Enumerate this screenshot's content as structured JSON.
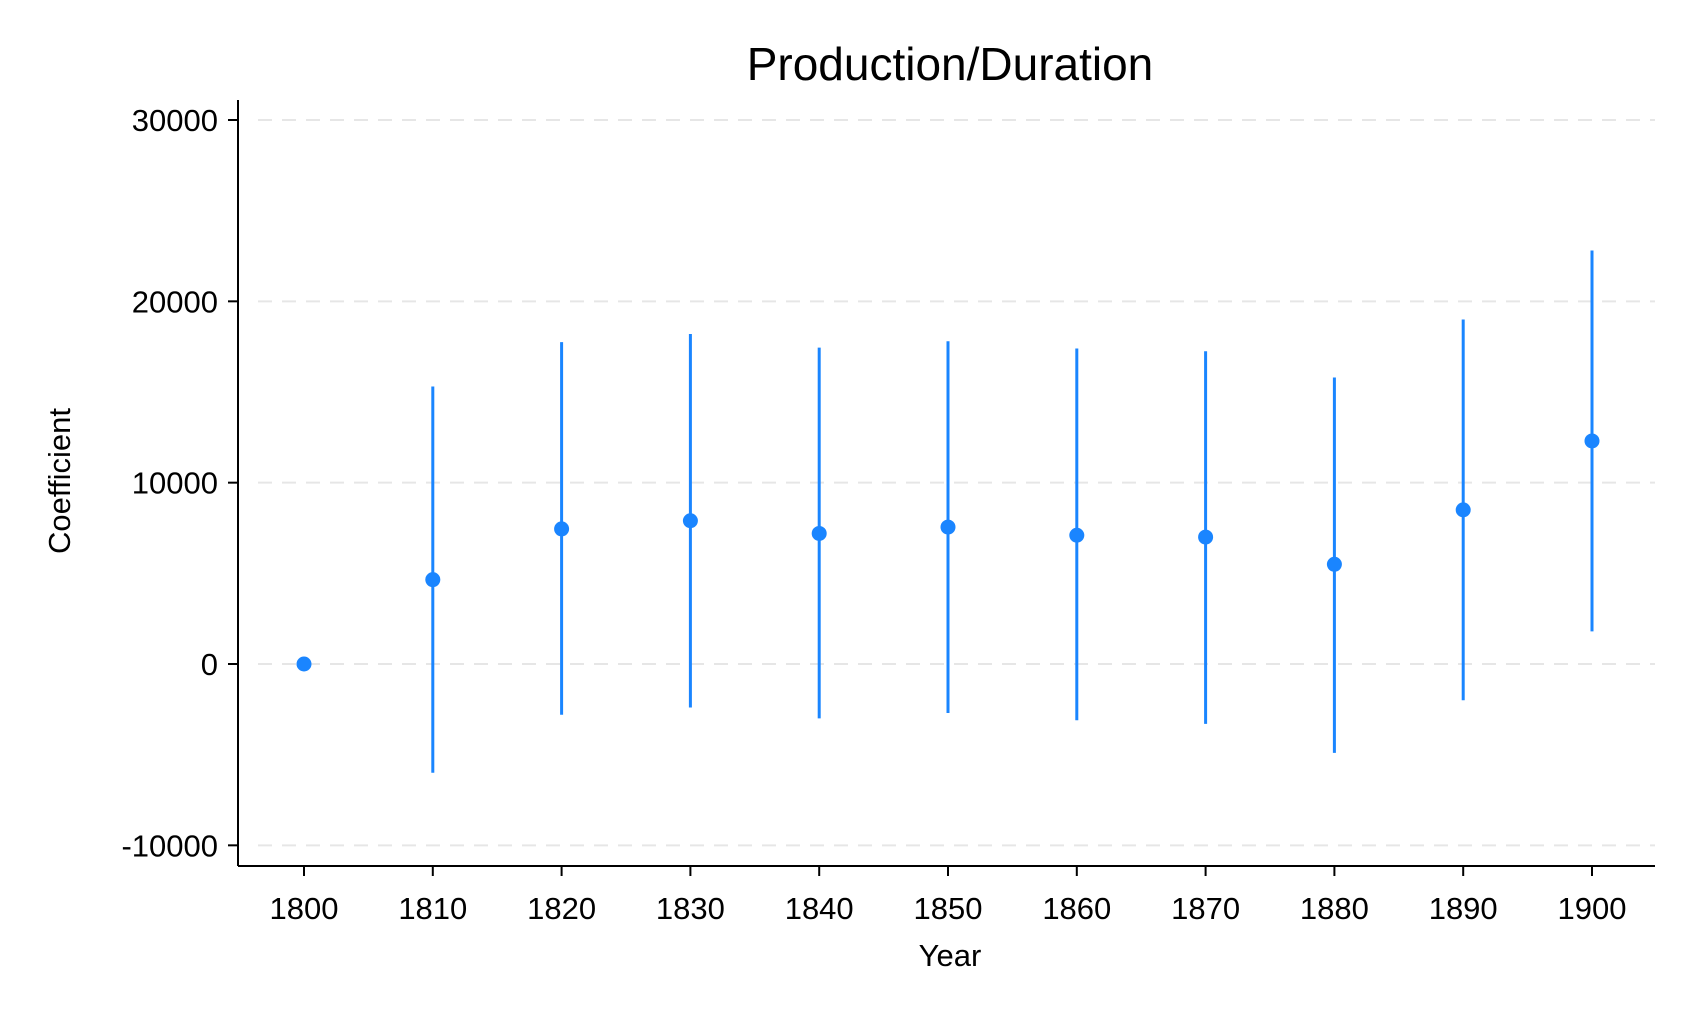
{
  "chart_data": {
    "type": "scatter",
    "title": "Production/Duration",
    "xlabel": "Year",
    "ylabel": "Coefficient",
    "x_ticks": [
      1800,
      1810,
      1820,
      1830,
      1840,
      1850,
      1860,
      1870,
      1880,
      1890,
      1900
    ],
    "y_ticks": [
      -10000,
      0,
      10000,
      20000,
      30000
    ],
    "xlim": [
      1795,
      1905
    ],
    "ylim": [
      -11200,
      31000
    ],
    "grid": "horizontal dashed",
    "legend": "none",
    "colors": {
      "marker": "#1a85ff",
      "ci_line": "#1a85ff",
      "grid": "#e6e6e6",
      "axis": "#000000"
    },
    "series": [
      {
        "x": [
          1800,
          1810,
          1820,
          1830,
          1840,
          1850,
          1860,
          1870,
          1880,
          1890,
          1900
        ],
        "coef": [
          0,
          4650,
          7450,
          7900,
          7200,
          7550,
          7100,
          7000,
          5500,
          8500,
          12300
        ],
        "ci_low": [
          0,
          -6000,
          -2800,
          -2400,
          -3000,
          -2700,
          -3100,
          -3300,
          -4900,
          -2000,
          1800
        ],
        "ci_high": [
          0,
          15300,
          17750,
          18200,
          17450,
          17800,
          17400,
          17250,
          15800,
          19000,
          22800
        ]
      }
    ]
  }
}
